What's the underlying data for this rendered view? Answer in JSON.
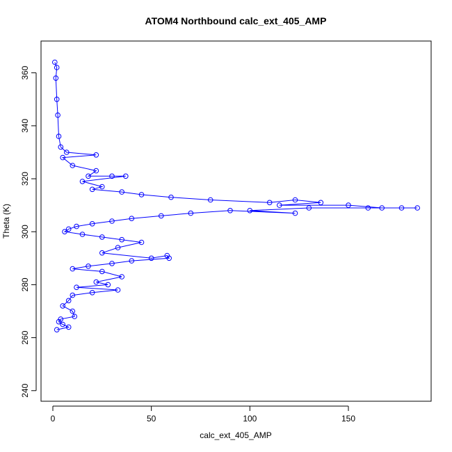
{
  "chart_data": {
    "type": "scatter",
    "title": "ATOM4 Northbound calc_ext_405_AMP",
    "xlabel": "calc_ext_405_AMP",
    "ylabel": "Theta (K)",
    "xlim": [
      -6,
      192
    ],
    "ylim": [
      236,
      372
    ],
    "x_ticks": [
      0,
      50,
      100,
      150
    ],
    "y_ticks": [
      240,
      260,
      280,
      300,
      320,
      340,
      360
    ],
    "grid": false,
    "legend": "none",
    "series": [
      {
        "style": "lines+open-circles",
        "color": "#0000ff",
        "points": [
          [
            1,
            364
          ],
          [
            2,
            362
          ],
          [
            1.5,
            358
          ],
          [
            2,
            350
          ],
          [
            2.5,
            344
          ],
          [
            3,
            336
          ],
          [
            4,
            332
          ],
          [
            7,
            330
          ],
          [
            22,
            329
          ],
          [
            5,
            328
          ],
          [
            10,
            325
          ],
          [
            22,
            323
          ],
          [
            18,
            321
          ],
          [
            30,
            321
          ],
          [
            37,
            321
          ],
          [
            15,
            319
          ],
          [
            25,
            317
          ],
          [
            20,
            316
          ],
          [
            35,
            315
          ],
          [
            45,
            314
          ],
          [
            60,
            313
          ],
          [
            80,
            312
          ],
          [
            110,
            311
          ],
          [
            123,
            312
          ],
          [
            136,
            311
          ],
          [
            115,
            310
          ],
          [
            150,
            310
          ],
          [
            167,
            309
          ],
          [
            177,
            309
          ],
          [
            185,
            309
          ],
          [
            160,
            309
          ],
          [
            130,
            309
          ],
          [
            100,
            308
          ],
          [
            123,
            307
          ],
          [
            90,
            308
          ],
          [
            70,
            307
          ],
          [
            55,
            306
          ],
          [
            40,
            305
          ],
          [
            30,
            304
          ],
          [
            20,
            303
          ],
          [
            12,
            302
          ],
          [
            8,
            301
          ],
          [
            6,
            300
          ],
          [
            15,
            299
          ],
          [
            25,
            298
          ],
          [
            35,
            297
          ],
          [
            45,
            296
          ],
          [
            33,
            294
          ],
          [
            25,
            292
          ],
          [
            50,
            290
          ],
          [
            58,
            291
          ],
          [
            59,
            290
          ],
          [
            40,
            289
          ],
          [
            30,
            288
          ],
          [
            18,
            287
          ],
          [
            10,
            286
          ],
          [
            25,
            285
          ],
          [
            35,
            283
          ],
          [
            22,
            281
          ],
          [
            28,
            280
          ],
          [
            12,
            279
          ],
          [
            33,
            278
          ],
          [
            20,
            277
          ],
          [
            10,
            276
          ],
          [
            8,
            274
          ],
          [
            5,
            272
          ],
          [
            10,
            270
          ],
          [
            11,
            268
          ],
          [
            4,
            267
          ],
          [
            3,
            266
          ],
          [
            5,
            265
          ],
          [
            8,
            264
          ],
          [
            2,
            263
          ]
        ]
      }
    ]
  }
}
